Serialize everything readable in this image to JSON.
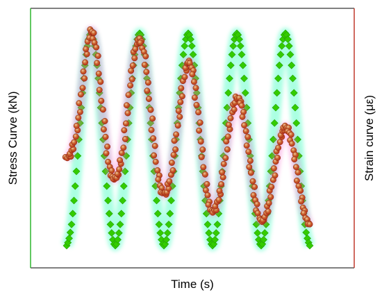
{
  "chart_data": {
    "type": "scatter",
    "title": "",
    "xlabel": "Time (s)",
    "ylabel_left": "Stress Curve (kN)",
    "ylabel_right": "Strain curve (με)",
    "tick_labels_shown": false,
    "grid": false,
    "legend": "none",
    "colors": {
      "left_axis": "#2db52d",
      "right_axis": "#c0392b",
      "frame": "#000000",
      "stress_marker": "#33cc00",
      "stress_glow": "#66ffcc",
      "strain_marker": "#b82a1a",
      "strain_highlight": "#f2c9a0",
      "strain_glow": "#ff66cc"
    },
    "series": [
      {
        "axis": "left",
        "marker": "diamond",
        "x": [
          0.0,
          0.1,
          0.2,
          0.3,
          0.4,
          0.5,
          0.6,
          0.7,
          0.8,
          0.9,
          1.0,
          1.1,
          1.2,
          1.3,
          1.4,
          1.5,
          1.6,
          1.7,
          1.8,
          1.9,
          2.0,
          2.1,
          2.2,
          2.3,
          2.4,
          2.5,
          2.6,
          2.7,
          2.8,
          2.9,
          3.0,
          3.1,
          3.2,
          3.3,
          3.4,
          3.5,
          3.6,
          3.7,
          3.8,
          3.9,
          4.0,
          4.1,
          4.2,
          4.3,
          4.4,
          4.5,
          4.6,
          4.7,
          4.8,
          4.9,
          5.0
        ],
        "y": [
          0.0,
          0.1,
          0.35,
          0.65,
          0.9,
          1.0,
          0.9,
          0.65,
          0.35,
          0.1,
          0.0,
          0.1,
          0.35,
          0.65,
          0.9,
          1.0,
          0.9,
          0.65,
          0.35,
          0.1,
          0.0,
          0.1,
          0.35,
          0.65,
          0.9,
          1.0,
          0.9,
          0.65,
          0.35,
          0.1,
          0.0,
          0.1,
          0.35,
          0.65,
          0.9,
          1.0,
          0.9,
          0.65,
          0.35,
          0.1,
          0.0,
          0.1,
          0.35,
          0.65,
          0.9,
          1.0,
          0.9,
          0.65,
          0.35,
          0.1,
          0.0
        ]
      },
      {
        "axis": "right",
        "marker": "sphere",
        "x": [
          0.0,
          0.1,
          0.2,
          0.3,
          0.4,
          0.5,
          0.6,
          0.7,
          0.8,
          0.9,
          1.0,
          1.1,
          1.2,
          1.3,
          1.4,
          1.5,
          1.6,
          1.7,
          1.8,
          1.9,
          2.0,
          2.1,
          2.2,
          2.3,
          2.4,
          2.5,
          2.6,
          2.7,
          2.8,
          2.9,
          3.0,
          3.1,
          3.2,
          3.3,
          3.4,
          3.5,
          3.6,
          3.7,
          3.8,
          3.9,
          4.0,
          4.1,
          4.2,
          4.3,
          4.4,
          4.5,
          4.6,
          4.7,
          4.8,
          4.9,
          5.0
        ],
        "y": [
          0.43,
          0.46,
          0.55,
          0.71,
          0.89,
          1.0,
          0.92,
          0.73,
          0.52,
          0.37,
          0.34,
          0.4,
          0.55,
          0.75,
          0.9,
          0.96,
          0.88,
          0.69,
          0.48,
          0.33,
          0.27,
          0.31,
          0.44,
          0.61,
          0.77,
          0.86,
          0.8,
          0.63,
          0.43,
          0.26,
          0.19,
          0.23,
          0.34,
          0.5,
          0.63,
          0.7,
          0.66,
          0.52,
          0.36,
          0.22,
          0.15,
          0.18,
          0.28,
          0.41,
          0.52,
          0.57,
          0.53,
          0.42,
          0.28,
          0.18,
          0.13
        ]
      }
    ]
  }
}
